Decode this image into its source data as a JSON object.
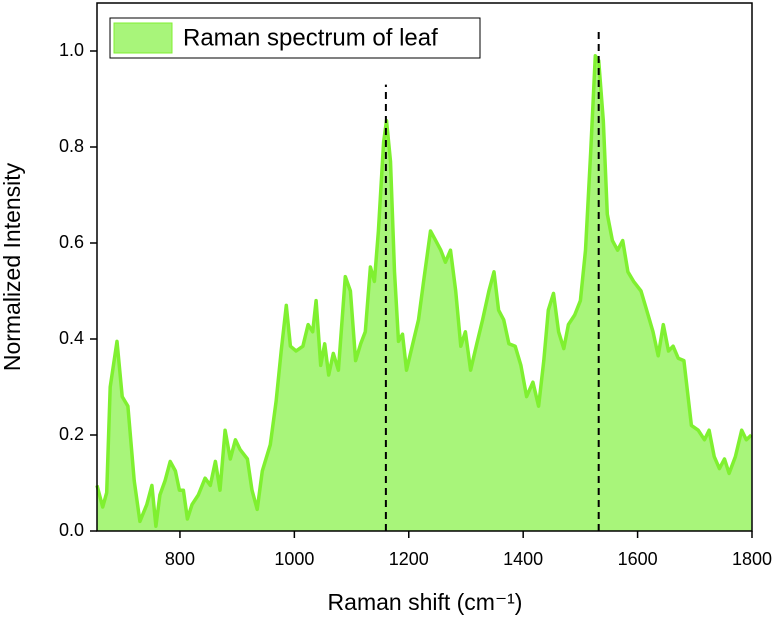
{
  "chart_data": {
    "type": "area",
    "xlabel": "Raman shift (cm⁻¹)",
    "ylabel": "Normalized Intensity",
    "xlim": [
      655,
      1800
    ],
    "ylim": [
      0,
      1.1
    ],
    "xticks": [
      800,
      1000,
      1200,
      1400,
      1600,
      1800
    ],
    "yticks": [
      {
        "value": 0,
        "label": "0.0"
      },
      0.2,
      0.4,
      0.6,
      0.8,
      {
        "value": 1,
        "label": "1.0"
      }
    ],
    "legend": "upper left",
    "markers": [
      {
        "x": 1160,
        "y": 0.93
      },
      {
        "x": 1532,
        "y": 1.045
      }
    ],
    "x": [
      655,
      665,
      672,
      678,
      690,
      699,
      709,
      720,
      730,
      742,
      751,
      758,
      765,
      774,
      783,
      792,
      799,
      806,
      813,
      821,
      832,
      844,
      853,
      862,
      870,
      879,
      888,
      897,
      905,
      918,
      926,
      935,
      944,
      958,
      968,
      977,
      986,
      993,
      1003,
      1015,
      1024,
      1032,
      1038,
      1046,
      1053,
      1060,
      1068,
      1077,
      1089,
      1098,
      1107,
      1116,
      1124,
      1133,
      1140,
      1147,
      1156,
      1161,
      1168,
      1175,
      1182,
      1189,
      1196,
      1206,
      1217,
      1226,
      1238,
      1247,
      1256,
      1264,
      1273,
      1282,
      1291,
      1299,
      1308,
      1319,
      1329,
      1340,
      1349,
      1357,
      1366,
      1375,
      1386,
      1396,
      1406,
      1417,
      1427,
      1436,
      1444,
      1453,
      1462,
      1471,
      1479,
      1490,
      1500,
      1509,
      1518,
      1526,
      1532,
      1540,
      1547,
      1556,
      1565,
      1574,
      1583,
      1593,
      1606,
      1616,
      1627,
      1636,
      1645,
      1654,
      1662,
      1671,
      1681,
      1694,
      1706,
      1717,
      1725,
      1734,
      1743,
      1752,
      1760,
      1771,
      1782,
      1790,
      1799
    ],
    "series": [
      {
        "name": "Raman spectrum of leaf",
        "color": "#7ff030",
        "fill": "#a8f57a",
        "values": [
          0.095,
          0.05,
          0.08,
          0.3,
          0.395,
          0.28,
          0.26,
          0.105,
          0.02,
          0.055,
          0.095,
          0.01,
          0.075,
          0.105,
          0.145,
          0.125,
          0.085,
          0.085,
          0.025,
          0.055,
          0.075,
          0.11,
          0.095,
          0.145,
          0.085,
          0.21,
          0.15,
          0.19,
          0.17,
          0.15,
          0.085,
          0.045,
          0.125,
          0.18,
          0.27,
          0.375,
          0.47,
          0.385,
          0.375,
          0.385,
          0.43,
          0.415,
          0.48,
          0.345,
          0.39,
          0.325,
          0.37,
          0.335,
          0.53,
          0.5,
          0.355,
          0.39,
          0.415,
          0.55,
          0.52,
          0.625,
          0.81,
          0.855,
          0.77,
          0.54,
          0.395,
          0.41,
          0.335,
          0.385,
          0.44,
          0.52,
          0.625,
          0.605,
          0.585,
          0.56,
          0.585,
          0.5,
          0.385,
          0.415,
          0.335,
          0.39,
          0.44,
          0.5,
          0.54,
          0.46,
          0.44,
          0.39,
          0.385,
          0.345,
          0.28,
          0.31,
          0.26,
          0.355,
          0.46,
          0.495,
          0.415,
          0.38,
          0.43,
          0.45,
          0.48,
          0.585,
          0.79,
          0.99,
          0.98,
          0.855,
          0.66,
          0.605,
          0.585,
          0.605,
          0.54,
          0.52,
          0.5,
          0.46,
          0.415,
          0.365,
          0.43,
          0.375,
          0.385,
          0.36,
          0.355,
          0.22,
          0.21,
          0.19,
          0.21,
          0.155,
          0.13,
          0.15,
          0.12,
          0.155,
          0.21,
          0.19,
          0.2
        ]
      }
    ]
  }
}
